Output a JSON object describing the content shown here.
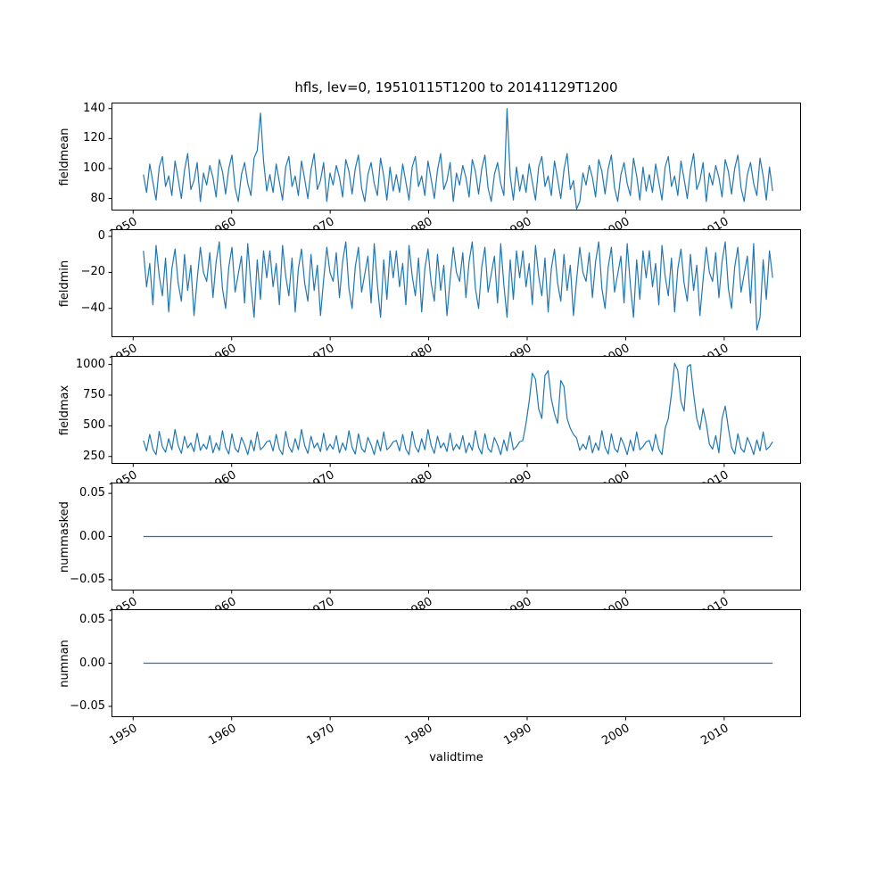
{
  "chart_data": {
    "type": "line",
    "title": "hfls, lev=0, 19510115T1200 to 20141129T1200",
    "xlabel": "validtime",
    "line_color": "#1f77b4",
    "frame_color": "#000000",
    "grid": false,
    "legend": "none",
    "xlim": [
      1947.8,
      2017.8
    ],
    "xticks": [
      1950,
      1960,
      1970,
      1980,
      1990,
      2000,
      2010
    ],
    "xtick_labels": [
      "1950",
      "1960",
      "1970",
      "1980",
      "1990",
      "2000",
      "2010"
    ],
    "x_start": 1951.04,
    "x_end": 2014.92,
    "subplots": [
      {
        "name": "fieldmean",
        "ylabel": "fieldmean",
        "ylim": [
          72,
          144
        ],
        "yticks": [
          80,
          100,
          120,
          140
        ],
        "ytick_labels": [
          "80",
          "100",
          "120",
          "140"
        ],
        "y": [
          96,
          84,
          103,
          91,
          79,
          101,
          108,
          88,
          95,
          82,
          105,
          93,
          80,
          99,
          110,
          86,
          92,
          104,
          78,
          97,
          89,
          102,
          94,
          81,
          106,
          98,
          83,
          100,
          109,
          87,
          78,
          96,
          104,
          90,
          82,
          107,
          112,
          137,
          105,
          85,
          96,
          84,
          103,
          91,
          79,
          101,
          108,
          88,
          95,
          82,
          105,
          93,
          80,
          99,
          110,
          86,
          92,
          104,
          78,
          97,
          89,
          102,
          94,
          81,
          106,
          98,
          83,
          100,
          109,
          87,
          78,
          96,
          104,
          90,
          82,
          107,
          95,
          79,
          101,
          85,
          96,
          84,
          103,
          91,
          79,
          101,
          108,
          88,
          95,
          82,
          105,
          93,
          80,
          99,
          110,
          86,
          92,
          104,
          78,
          97,
          89,
          102,
          94,
          81,
          106,
          98,
          83,
          100,
          109,
          87,
          78,
          96,
          104,
          90,
          82,
          140,
          95,
          79,
          101,
          85,
          96,
          84,
          103,
          91,
          79,
          101,
          108,
          88,
          95,
          82,
          105,
          93,
          80,
          99,
          110,
          86,
          92,
          73,
          78,
          97,
          89,
          102,
          94,
          81,
          106,
          98,
          83,
          100,
          109,
          87,
          78,
          96,
          104,
          90,
          82,
          107,
          95,
          79,
          101,
          85,
          96,
          84,
          103,
          91,
          79,
          101,
          108,
          88,
          95,
          82,
          105,
          93,
          80,
          99,
          110,
          86,
          92,
          104,
          78,
          97,
          89,
          102,
          94,
          81,
          106,
          98,
          83,
          100,
          109,
          87,
          78,
          96,
          104,
          90,
          82,
          107,
          95,
          79,
          101,
          85
        ]
      },
      {
        "name": "fieldmin",
        "ylabel": "fieldmin",
        "ylim": [
          -56,
          4
        ],
        "yticks": [
          0,
          -20,
          -40
        ],
        "ytick_labels": [
          "0",
          "−20",
          "−40"
        ],
        "y": [
          -8,
          -28,
          -15,
          -38,
          -5,
          -22,
          -33,
          -12,
          -42,
          -18,
          -7,
          -26,
          -36,
          -10,
          -30,
          -16,
          -44,
          -24,
          -6,
          -20,
          -25,
          -9,
          -34,
          -14,
          -3,
          -29,
          -40,
          -17,
          -6,
          -31,
          -21,
          -11,
          -37,
          -4,
          -27,
          -45,
          -13,
          -35,
          -8,
          -23,
          -8,
          -28,
          -15,
          -38,
          -5,
          -22,
          -33,
          -12,
          -42,
          -18,
          -7,
          -26,
          -36,
          -10,
          -30,
          -16,
          -44,
          -24,
          -6,
          -20,
          -25,
          -9,
          -34,
          -14,
          -3,
          -29,
          -40,
          -17,
          -6,
          -31,
          -21,
          -11,
          -37,
          -4,
          -27,
          -45,
          -13,
          -35,
          -8,
          -23,
          -8,
          -28,
          -15,
          -38,
          -5,
          -22,
          -33,
          -12,
          -42,
          -18,
          -7,
          -26,
          -36,
          -10,
          -30,
          -16,
          -44,
          -24,
          -6,
          -20,
          -25,
          -9,
          -34,
          -14,
          -3,
          -29,
          -40,
          -17,
          -6,
          -31,
          -21,
          -11,
          -37,
          -4,
          -27,
          -45,
          -13,
          -35,
          -8,
          -23,
          -8,
          -28,
          -15,
          -38,
          -5,
          -22,
          -33,
          -12,
          -42,
          -18,
          -7,
          -26,
          -36,
          -10,
          -30,
          -16,
          -44,
          -24,
          -6,
          -20,
          -25,
          -9,
          -34,
          -14,
          -3,
          -29,
          -40,
          -17,
          -6,
          -31,
          -21,
          -11,
          -37,
          -4,
          -27,
          -45,
          -13,
          -35,
          -8,
          -23,
          -8,
          -28,
          -15,
          -38,
          -5,
          -22,
          -33,
          -12,
          -42,
          -18,
          -7,
          -26,
          -36,
          -10,
          -30,
          -16,
          -44,
          -24,
          -6,
          -20,
          -25,
          -9,
          -34,
          -14,
          -3,
          -29,
          -40,
          -17,
          -6,
          -31,
          -21,
          -11,
          -37,
          -4,
          -52,
          -45,
          -13,
          -35,
          -8,
          -23
        ]
      },
      {
        "name": "fieldmax",
        "ylabel": "fieldmax",
        "ylim": [
          190,
          1070
        ],
        "yticks": [
          250,
          500,
          750,
          1000
        ],
        "ytick_labels": [
          "250",
          "500",
          "750",
          "1000"
        ],
        "y": [
          380,
          295,
          430,
          310,
          265,
          455,
          330,
          285,
          395,
          305,
          470,
          340,
          275,
          415,
          320,
          360,
          290,
          440,
          300,
          350,
          310,
          420,
          280,
          360,
          300,
          460,
          325,
          270,
          435,
          315,
          285,
          405,
          345,
          265,
          385,
          295,
          450,
          305,
          330,
          370,
          380,
          295,
          430,
          310,
          265,
          455,
          330,
          285,
          395,
          305,
          470,
          340,
          275,
          415,
          320,
          360,
          290,
          440,
          300,
          350,
          310,
          420,
          280,
          360,
          300,
          460,
          325,
          270,
          435,
          315,
          285,
          405,
          345,
          265,
          385,
          295,
          450,
          305,
          330,
          370,
          380,
          295,
          430,
          310,
          265,
          455,
          330,
          285,
          395,
          305,
          470,
          340,
          275,
          415,
          320,
          360,
          290,
          440,
          300,
          350,
          310,
          420,
          280,
          360,
          300,
          460,
          325,
          270,
          435,
          315,
          285,
          405,
          345,
          265,
          385,
          295,
          450,
          305,
          330,
          370,
          380,
          520,
          700,
          930,
          880,
          640,
          560,
          910,
          950,
          720,
          600,
          520,
          870,
          820,
          560,
          480,
          430,
          400,
          300,
          350,
          310,
          420,
          280,
          360,
          300,
          460,
          325,
          270,
          435,
          315,
          285,
          405,
          345,
          265,
          385,
          295,
          450,
          305,
          330,
          370,
          380,
          295,
          430,
          310,
          265,
          480,
          560,
          760,
          1010,
          950,
          700,
          620,
          980,
          1000,
          760,
          560,
          470,
          640,
          520,
          350,
          310,
          420,
          280,
          560,
          660,
          480,
          325,
          270,
          435,
          315,
          285,
          405,
          345,
          265,
          385,
          295,
          450,
          305,
          330,
          370
        ]
      },
      {
        "name": "nummasked",
        "ylabel": "nummasked",
        "ylim": [
          -0.0625,
          0.0625
        ],
        "yticks": [
          0.05,
          0.0,
          -0.05
        ],
        "ytick_labels": [
          "0.05",
          "0.00",
          "−0.05"
        ],
        "y": [
          0,
          0
        ]
      },
      {
        "name": "numnan",
        "ylabel": "numnan",
        "ylim": [
          -0.0625,
          0.0625
        ],
        "yticks": [
          0.05,
          0.0,
          -0.05
        ],
        "ytick_labels": [
          "0.05",
          "0.00",
          "−0.05"
        ],
        "y": [
          0,
          0
        ]
      }
    ]
  }
}
